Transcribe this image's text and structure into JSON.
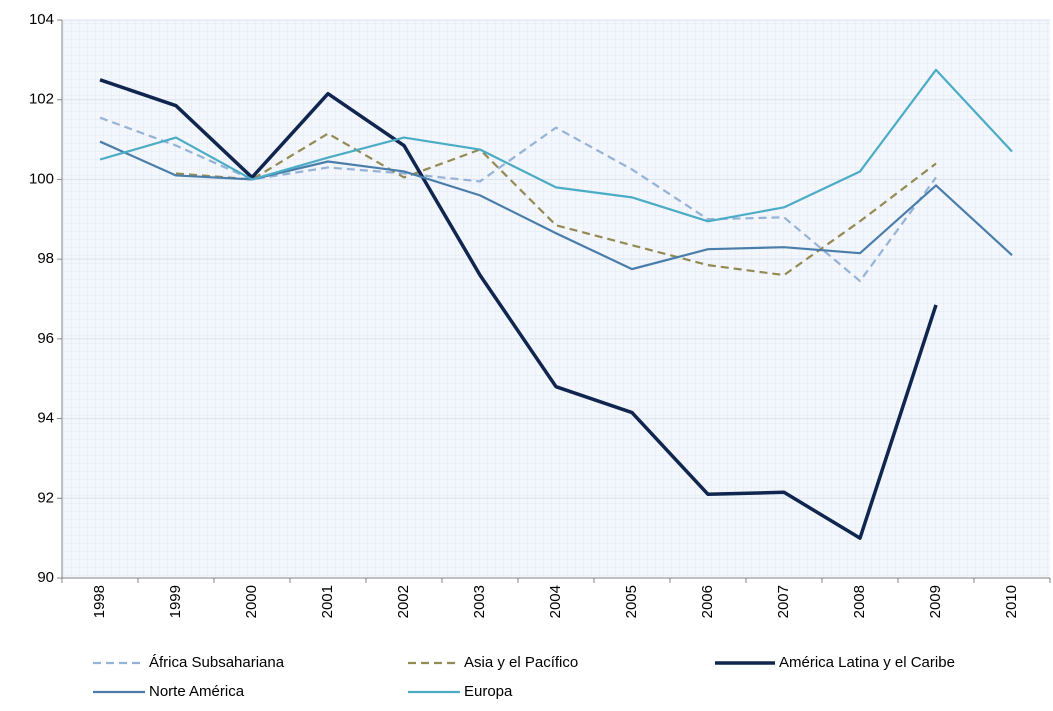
{
  "chart_data": {
    "type": "line",
    "categories": [
      "1998",
      "1999",
      "2000",
      "2001",
      "2002",
      "2003",
      "2004",
      "2005",
      "2006",
      "2007",
      "2008",
      "2009",
      "2010"
    ],
    "series": [
      {
        "name": "África Subsahariana",
        "color": "#95b3d7",
        "dashed": true,
        "values": [
          101.55,
          100.85,
          100.0,
          100.3,
          100.15,
          99.95,
          101.3,
          100.25,
          99.0,
          99.05,
          97.45,
          100.05,
          null
        ]
      },
      {
        "name": "Asia y el Pacífico",
        "color": "#948a54",
        "dashed": true,
        "values": [
          null,
          100.15,
          100.0,
          101.15,
          100.05,
          100.75,
          98.85,
          98.35,
          97.85,
          97.6,
          98.95,
          100.4,
          null
        ]
      },
      {
        "name": "América Latina y el Caribe",
        "color": "#10264f",
        "dashed": false,
        "values": [
          102.5,
          101.85,
          100.05,
          102.15,
          100.85,
          97.6,
          94.8,
          94.15,
          92.1,
          92.15,
          91.0,
          96.85,
          null
        ]
      },
      {
        "name": "Norte América",
        "color": "#4a7eaa",
        "dashed": false,
        "values": [
          100.95,
          100.1,
          100.0,
          100.45,
          100.2,
          99.6,
          98.65,
          97.75,
          98.25,
          98.3,
          98.15,
          99.85,
          98.1
        ]
      },
      {
        "name": "Europa",
        "color": "#4bacc6",
        "dashed": false,
        "values": [
          100.5,
          101.05,
          100.0,
          100.55,
          101.05,
          100.75,
          99.8,
          99.55,
          98.95,
          99.3,
          100.2,
          102.75,
          100.7
        ]
      }
    ],
    "ylim": [
      90,
      104
    ],
    "yticks": [
      90,
      92,
      94,
      96,
      98,
      100,
      102,
      104
    ],
    "grid": true
  }
}
